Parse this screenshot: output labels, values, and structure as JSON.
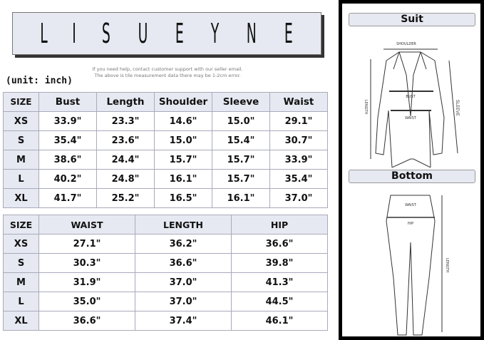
{
  "brand": {
    "letters": [
      "L",
      "I",
      "S",
      "U",
      "E",
      "Y",
      "N",
      "E"
    ]
  },
  "help_lines": [
    "If you need help, contact customer support with our seller email.",
    "The above is tile measurement data there may be 1-2cm error."
  ],
  "unit_label": "(unit: inch)",
  "suit_table": {
    "headers": [
      "SIZE",
      "Bust",
      "Length",
      "Shoulder",
      "Sleeve",
      "Waist"
    ],
    "rows": [
      [
        "XS",
        "33.9\"",
        "23.3\"",
        "14.6\"",
        "15.0\"",
        "29.1\""
      ],
      [
        "S",
        "35.4\"",
        "23.6\"",
        "15.0\"",
        "15.4\"",
        "30.7\""
      ],
      [
        "M",
        "38.6\"",
        "24.4\"",
        "15.7\"",
        "15.7\"",
        "33.9\""
      ],
      [
        "L",
        "40.2\"",
        "24.8\"",
        "16.1\"",
        "15.7\"",
        "35.4\""
      ],
      [
        "XL",
        "41.7\"",
        "25.2\"",
        "16.5\"",
        "16.1\"",
        "37.0\""
      ]
    ]
  },
  "bottom_table": {
    "headers": [
      "SIZE",
      "WAIST",
      "LENGTH",
      "HIP"
    ],
    "rows": [
      [
        "XS",
        "27.1\"",
        "36.2\"",
        "36.6\""
      ],
      [
        "S",
        "30.3\"",
        "36.6\"",
        "39.8\""
      ],
      [
        "M",
        "31.9\"",
        "37.0\"",
        "41.3\""
      ],
      [
        "L",
        "35.0\"",
        "37.0\"",
        "44.5\""
      ],
      [
        "XL",
        "36.6\"",
        "37.4\"",
        "46.1\""
      ]
    ]
  },
  "diagram": {
    "suit_title": "Suit",
    "bottom_title": "Bottom",
    "suit_labels": {
      "shoulder": "SHOULDER",
      "bust": "BUST",
      "waist": "WAIST",
      "length": "LENGTH",
      "sleeve": "SLEEVE"
    },
    "bottom_labels": {
      "waist": "WAIST",
      "hip": "HIP",
      "length": "LENGTH"
    }
  }
}
